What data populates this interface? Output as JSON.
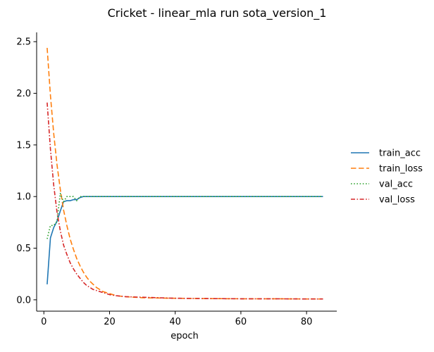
{
  "chart_data": {
    "type": "line",
    "title": "Cricket - linear_mla run sota_version_1",
    "xlabel": "epoch",
    "ylabel": "",
    "xlim": [
      -2.2,
      89.2
    ],
    "ylim": [
      -0.11,
      2.59
    ],
    "xticks": [
      0,
      20,
      40,
      60,
      80
    ],
    "yticks": [
      0.0,
      0.5,
      1.0,
      1.5,
      2.0,
      2.5
    ],
    "grid": false,
    "legend_placement": "right",
    "series": [
      {
        "name": "train_acc",
        "color": "#1f77b4",
        "dash": "solid",
        "points": [
          [
            1,
            0.15
          ],
          [
            2,
            0.6
          ],
          [
            3,
            0.7
          ],
          [
            4,
            0.76
          ],
          [
            5,
            0.86
          ],
          [
            6,
            0.95
          ],
          [
            7,
            0.96
          ],
          [
            8,
            0.96
          ],
          [
            9,
            0.97
          ],
          [
            10,
            0.97
          ],
          [
            11,
            0.99
          ],
          [
            12,
            1.0
          ],
          [
            15,
            1.0
          ],
          [
            20,
            1.0
          ],
          [
            30,
            1.0
          ],
          [
            40,
            1.0
          ],
          [
            50,
            1.0
          ],
          [
            60,
            1.0
          ],
          [
            70,
            1.0
          ],
          [
            80,
            1.0
          ],
          [
            85,
            1.0
          ]
        ]
      },
      {
        "name": "train_loss",
        "color": "#ff7f0e",
        "dash": "dashed",
        "points": [
          [
            1,
            2.44
          ],
          [
            2,
            1.98
          ],
          [
            3,
            1.61
          ],
          [
            4,
            1.31
          ],
          [
            5,
            1.07
          ],
          [
            6,
            0.87
          ],
          [
            7,
            0.72
          ],
          [
            8,
            0.59
          ],
          [
            9,
            0.49
          ],
          [
            10,
            0.4
          ],
          [
            11,
            0.33
          ],
          [
            12,
            0.27
          ],
          [
            13,
            0.22
          ],
          [
            14,
            0.18
          ],
          [
            15,
            0.15
          ],
          [
            16,
            0.12
          ],
          [
            17,
            0.1
          ],
          [
            18,
            0.08
          ],
          [
            20,
            0.06
          ],
          [
            22,
            0.04
          ],
          [
            25,
            0.03
          ],
          [
            30,
            0.02
          ],
          [
            40,
            0.015
          ],
          [
            50,
            0.012
          ],
          [
            60,
            0.01
          ],
          [
            70,
            0.01
          ],
          [
            80,
            0.008
          ],
          [
            85,
            0.008
          ]
        ]
      },
      {
        "name": "val_acc",
        "color": "#2ca02c",
        "dash": "dotted",
        "points": [
          [
            1,
            0.59
          ],
          [
            2,
            0.72
          ],
          [
            3,
            0.72
          ],
          [
            4,
            0.76
          ],
          [
            5,
            1.03
          ],
          [
            6,
            0.95
          ],
          [
            7,
            1.0
          ],
          [
            8,
            1.0
          ],
          [
            9,
            1.0
          ],
          [
            10,
            0.96
          ],
          [
            11,
            1.0
          ],
          [
            12,
            1.0
          ],
          [
            20,
            1.0
          ],
          [
            30,
            1.0
          ],
          [
            40,
            1.0
          ],
          [
            50,
            1.0
          ],
          [
            60,
            1.0
          ],
          [
            70,
            1.0
          ],
          [
            80,
            1.0
          ],
          [
            85,
            1.0
          ]
        ]
      },
      {
        "name": "val_loss",
        "color": "#d62728",
        "dash": "dashdot",
        "points": [
          [
            1,
            1.91
          ],
          [
            2,
            1.46
          ],
          [
            3,
            1.11
          ],
          [
            4,
            0.85
          ],
          [
            5,
            0.67
          ],
          [
            6,
            0.53
          ],
          [
            7,
            0.44
          ],
          [
            8,
            0.36
          ],
          [
            9,
            0.3
          ],
          [
            10,
            0.25
          ],
          [
            11,
            0.21
          ],
          [
            12,
            0.17
          ],
          [
            13,
            0.14
          ],
          [
            14,
            0.12
          ],
          [
            15,
            0.1
          ],
          [
            16,
            0.09
          ],
          [
            18,
            0.07
          ],
          [
            20,
            0.05
          ],
          [
            22,
            0.04
          ],
          [
            25,
            0.03
          ],
          [
            30,
            0.025
          ],
          [
            40,
            0.015
          ],
          [
            50,
            0.012
          ],
          [
            60,
            0.01
          ],
          [
            70,
            0.01
          ],
          [
            80,
            0.008
          ],
          [
            85,
            0.008
          ]
        ]
      }
    ]
  }
}
